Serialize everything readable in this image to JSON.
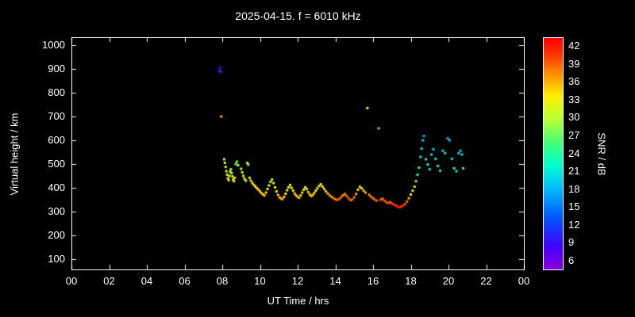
{
  "title": "2025-04-15. f = 6010 kHz",
  "colors": {
    "background": "#000000",
    "foreground": "#ffffff"
  },
  "chart_data": {
    "type": "scatter",
    "title": "2025-04-15. f = 6010 kHz",
    "xlabel": "UT Time / hrs",
    "ylabel": "Virtual height / km",
    "colorbar_label": "SNR / dB",
    "xlim": [
      0,
      24
    ],
    "ylim": [
      66.7,
      1033.3
    ],
    "x_tick_values": [
      0,
      2,
      4,
      6,
      8,
      10,
      12,
      14,
      16,
      18,
      20,
      22,
      24
    ],
    "x_tick_labels": [
      "00",
      "02",
      "04",
      "06",
      "08",
      "10",
      "12",
      "14",
      "16",
      "18",
      "20",
      "22",
      "00"
    ],
    "y_tick_values": [
      100,
      200,
      300,
      400,
      500,
      600,
      700,
      800,
      900,
      1000
    ],
    "colorbar_tick_values": [
      6,
      9,
      12,
      15,
      18,
      21,
      24,
      27,
      30,
      33,
      36,
      39,
      42
    ],
    "colorbar_range": [
      4.5,
      43.5
    ],
    "grid": false,
    "legend": false,
    "colormap": [
      {
        "t": 0.0,
        "c": "#8800dd"
      },
      {
        "t": 0.1,
        "c": "#4400ff"
      },
      {
        "t": 0.22,
        "c": "#0055ff"
      },
      {
        "t": 0.35,
        "c": "#00bbff"
      },
      {
        "t": 0.45,
        "c": "#00ffcc"
      },
      {
        "t": 0.55,
        "c": "#44ff77"
      },
      {
        "t": 0.65,
        "c": "#bbff33"
      },
      {
        "t": 0.75,
        "c": "#ffee00"
      },
      {
        "t": 0.85,
        "c": "#ff8800"
      },
      {
        "t": 0.93,
        "c": "#ff3300"
      },
      {
        "t": 1.0,
        "c": "#ff0000"
      }
    ],
    "points_format": [
      "ut_hour",
      "virtual_height_km",
      "snr_db"
    ],
    "points": [
      [
        7.83,
        893,
        9
      ],
      [
        7.88,
        905,
        7
      ],
      [
        7.92,
        888,
        11
      ],
      [
        7.95,
        700,
        36
      ],
      [
        8.1,
        520,
        30
      ],
      [
        8.14,
        505,
        31
      ],
      [
        8.18,
        488,
        32
      ],
      [
        8.22,
        470,
        30
      ],
      [
        8.26,
        455,
        32
      ],
      [
        8.3,
        440,
        33
      ],
      [
        8.34,
        432,
        34
      ],
      [
        8.38,
        450,
        31
      ],
      [
        8.42,
        468,
        30
      ],
      [
        8.46,
        478,
        29
      ],
      [
        8.5,
        462,
        31
      ],
      [
        8.54,
        448,
        33
      ],
      [
        8.58,
        435,
        33
      ],
      [
        8.62,
        428,
        34
      ],
      [
        8.66,
        442,
        31
      ],
      [
        8.72,
        500,
        28
      ],
      [
        8.78,
        510,
        27
      ],
      [
        8.84,
        495,
        29
      ],
      [
        9.0,
        480,
        30
      ],
      [
        9.06,
        465,
        31
      ],
      [
        9.12,
        450,
        32
      ],
      [
        9.18,
        438,
        33
      ],
      [
        9.25,
        430,
        33
      ],
      [
        9.32,
        505,
        28
      ],
      [
        9.38,
        498,
        29
      ],
      [
        9.45,
        442,
        32
      ],
      [
        9.52,
        430,
        33
      ],
      [
        9.6,
        420,
        33
      ],
      [
        9.68,
        412,
        34
      ],
      [
        9.76,
        405,
        34
      ],
      [
        9.84,
        398,
        34
      ],
      [
        9.92,
        392,
        35
      ],
      [
        10.0,
        385,
        35
      ],
      [
        10.08,
        378,
        35
      ],
      [
        10.16,
        372,
        35
      ],
      [
        10.24,
        368,
        36
      ],
      [
        10.32,
        380,
        34
      ],
      [
        10.4,
        395,
        33
      ],
      [
        10.48,
        410,
        32
      ],
      [
        10.56,
        425,
        31
      ],
      [
        10.64,
        435,
        30
      ],
      [
        10.72,
        420,
        32
      ],
      [
        10.8,
        402,
        33
      ],
      [
        10.88,
        385,
        34
      ],
      [
        10.96,
        370,
        35
      ],
      [
        11.04,
        360,
        36
      ],
      [
        11.12,
        355,
        36
      ],
      [
        11.2,
        352,
        37
      ],
      [
        11.28,
        362,
        35
      ],
      [
        11.36,
        375,
        34
      ],
      [
        11.44,
        390,
        33
      ],
      [
        11.52,
        402,
        32
      ],
      [
        11.6,
        412,
        32
      ],
      [
        11.68,
        400,
        33
      ],
      [
        11.76,
        388,
        34
      ],
      [
        11.84,
        376,
        35
      ],
      [
        11.92,
        368,
        35
      ],
      [
        12.0,
        362,
        36
      ],
      [
        12.08,
        358,
        36
      ],
      [
        12.16,
        368,
        35
      ],
      [
        12.24,
        380,
        34
      ],
      [
        12.32,
        392,
        33
      ],
      [
        12.4,
        402,
        33
      ],
      [
        12.48,
        395,
        34
      ],
      [
        12.56,
        382,
        35
      ],
      [
        12.64,
        372,
        35
      ],
      [
        12.72,
        365,
        36
      ],
      [
        12.8,
        370,
        35
      ],
      [
        12.88,
        378,
        35
      ],
      [
        12.96,
        388,
        34
      ],
      [
        13.05,
        398,
        34
      ],
      [
        13.14,
        408,
        33
      ],
      [
        13.23,
        415,
        33
      ],
      [
        13.32,
        405,
        34
      ],
      [
        13.41,
        395,
        35
      ],
      [
        13.5,
        385,
        35
      ],
      [
        13.6,
        376,
        36
      ],
      [
        13.7,
        368,
        37
      ],
      [
        13.8,
        362,
        37
      ],
      [
        13.9,
        356,
        38
      ],
      [
        14.0,
        352,
        38
      ],
      [
        14.1,
        349,
        39
      ],
      [
        14.2,
        353,
        39
      ],
      [
        14.3,
        360,
        38
      ],
      [
        14.4,
        368,
        37
      ],
      [
        14.5,
        374,
        37
      ],
      [
        14.6,
        366,
        38
      ],
      [
        14.7,
        356,
        39
      ],
      [
        14.8,
        348,
        39
      ],
      [
        14.9,
        351,
        39
      ],
      [
        15.0,
        360,
        38
      ],
      [
        15.1,
        374,
        36
      ],
      [
        15.2,
        392,
        34
      ],
      [
        15.3,
        404,
        33
      ],
      [
        15.4,
        398,
        34
      ],
      [
        15.5,
        388,
        35
      ],
      [
        15.6,
        380,
        36
      ],
      [
        15.7,
        735,
        33
      ],
      [
        15.8,
        370,
        37
      ],
      [
        15.9,
        362,
        38
      ],
      [
        16.0,
        356,
        38
      ],
      [
        16.1,
        350,
        39
      ],
      [
        16.2,
        346,
        39
      ],
      [
        16.3,
        650,
        21
      ],
      [
        16.4,
        350,
        39
      ],
      [
        16.5,
        354,
        38
      ],
      [
        16.6,
        346,
        39
      ],
      [
        16.7,
        340,
        40
      ],
      [
        16.8,
        336,
        40
      ],
      [
        16.9,
        340,
        39
      ],
      [
        17.0,
        334,
        40
      ],
      [
        17.1,
        330,
        41
      ],
      [
        17.2,
        326,
        41
      ],
      [
        17.3,
        321,
        42
      ],
      [
        17.4,
        318,
        42
      ],
      [
        17.5,
        321,
        41
      ],
      [
        17.6,
        326,
        41
      ],
      [
        17.7,
        332,
        40
      ],
      [
        17.8,
        342,
        38
      ],
      [
        17.9,
        356,
        36
      ],
      [
        18.0,
        372,
        34
      ],
      [
        18.1,
        388,
        32
      ],
      [
        18.2,
        405,
        30
      ],
      [
        18.28,
        428,
        27
      ],
      [
        18.36,
        455,
        24
      ],
      [
        18.44,
        485,
        22
      ],
      [
        18.52,
        530,
        21
      ],
      [
        18.58,
        565,
        20
      ],
      [
        18.64,
        600,
        19
      ],
      [
        18.7,
        618,
        18
      ],
      [
        18.8,
        520,
        21
      ],
      [
        18.9,
        498,
        22
      ],
      [
        19.0,
        478,
        21
      ],
      [
        19.1,
        540,
        20
      ],
      [
        19.2,
        562,
        19
      ],
      [
        19.32,
        522,
        21
      ],
      [
        19.44,
        492,
        22
      ],
      [
        19.56,
        472,
        21
      ],
      [
        19.7,
        556,
        20
      ],
      [
        19.82,
        546,
        21
      ],
      [
        19.96,
        608,
        18
      ],
      [
        20.06,
        600,
        19
      ],
      [
        20.18,
        522,
        21
      ],
      [
        20.3,
        482,
        22
      ],
      [
        20.42,
        470,
        21
      ],
      [
        20.54,
        546,
        20
      ],
      [
        20.64,
        556,
        19
      ],
      [
        20.72,
        540,
        20
      ],
      [
        20.78,
        482,
        24
      ]
    ]
  }
}
